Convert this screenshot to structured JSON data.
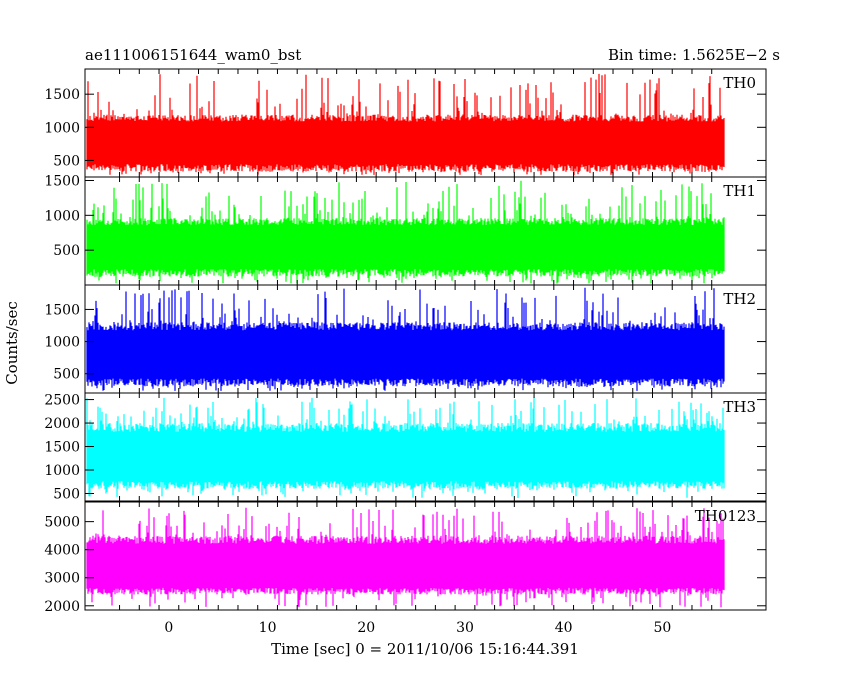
{
  "chart_data": {
    "type": "line",
    "title_left": "ae111006151644_wam0_bst",
    "title_right": "Bin time: 1.5625E−2 s",
    "xlabel": "Time [sec] 0 = 2011/10/06 15:16:44.391",
    "ylabel": "Counts/sec",
    "xlim": [
      -8.5,
      60.5
    ],
    "x_ticks": [
      0,
      10,
      20,
      30,
      40,
      50
    ],
    "x_data_range": [
      -8.3,
      56.3
    ],
    "panels": [
      {
        "name": "TH0",
        "color": "#ff0000",
        "ylim": [
          250,
          1880
        ],
        "y_ticks": [
          500,
          1000,
          1500
        ],
        "band": [
          330,
          1190
        ],
        "mean": 780,
        "spike_max": 1820,
        "dip_min": 270
      },
      {
        "name": "TH1",
        "color": "#00ff00",
        "ylim": [
          0,
          1550
        ],
        "y_ticks": [
          500,
          1000,
          1500
        ],
        "band": [
          120,
          960
        ],
        "mean": 560,
        "spike_max": 1500,
        "dip_min": 20
      },
      {
        "name": "TH2",
        "color": "#0000ff",
        "ylim": [
          200,
          1880
        ],
        "y_ticks": [
          500,
          1000,
          1500
        ],
        "band": [
          300,
          1300
        ],
        "mean": 800,
        "spike_max": 1850,
        "dip_min": 230
      },
      {
        "name": "TH3",
        "color": "#00ffff",
        "ylim": [
          340,
          2640
        ],
        "y_ticks": [
          500,
          1000,
          1500,
          2000,
          2500
        ],
        "band": [
          600,
          2000
        ],
        "mean": 1250,
        "spike_max": 2550,
        "dip_min": 400
      },
      {
        "name": "TH0123",
        "color": "#ff00ff",
        "ylim": [
          1850,
          5700
        ],
        "y_ticks": [
          2000,
          3000,
          4000,
          5000
        ],
        "band": [
          2400,
          4500
        ],
        "mean": 3350,
        "spike_max": 5500,
        "dip_min": 1950
      }
    ]
  }
}
